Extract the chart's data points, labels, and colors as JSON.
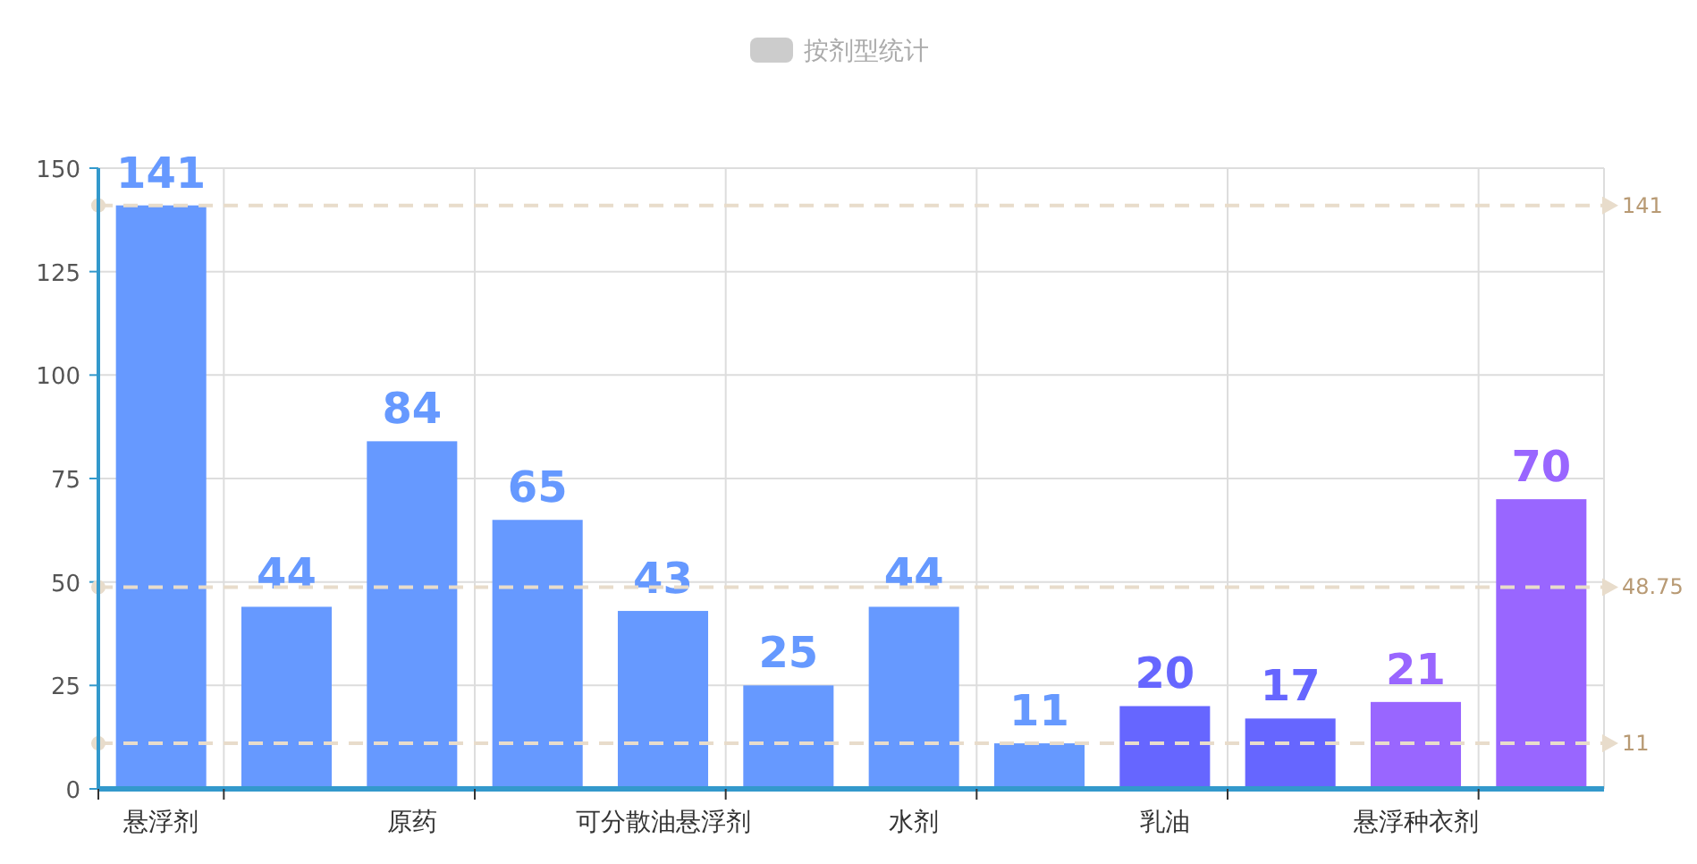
{
  "chart_data": {
    "type": "bar",
    "annotations": [
      "按剂型统计"
    ],
    "categories": [
      "悬浮剂",
      null,
      "原药",
      null,
      "可分散油悬浮剂",
      null,
      "水剂",
      null,
      "乳油",
      null,
      "悬浮种衣剂",
      null
    ],
    "series": [
      {
        "colors": [
          "#6699ff",
          "#6699ff",
          "#6699ff",
          "#6699ff",
          "#6699ff",
          "#6699ff",
          "#6699ff",
          "#6699ff",
          "#6666ff",
          "#6666ff",
          "#9966ff",
          "#9966ff"
        ],
        "values": [
          141,
          44,
          84,
          65,
          43,
          25,
          44,
          11,
          20,
          17,
          21,
          70
        ]
      }
    ],
    "ylim": [
      0,
      150
    ],
    "yticks": [
      0,
      25,
      50,
      75,
      100,
      125,
      150
    ],
    "grid": true,
    "data_labels": true,
    "ref_lines": [
      {
        "axis": "y",
        "value": 141,
        "label": "141",
        "color": "#e8dccb",
        "line_style": "dashed"
      },
      {
        "axis": "y",
        "value": 48.75,
        "label": "48.75",
        "color": "#e8dccb",
        "line_style": "dashed"
      },
      {
        "axis": "y",
        "value": 11,
        "label": "11",
        "color": "#e8dccb",
        "line_style": "dashed"
      }
    ]
  }
}
